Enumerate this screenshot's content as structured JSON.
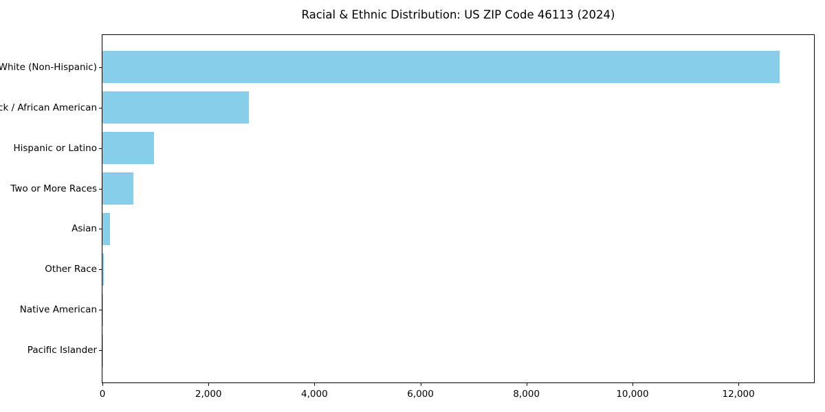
{
  "chart_data": {
    "type": "bar",
    "orientation": "horizontal",
    "title": "Racial & Ethnic Distribution: US ZIP Code 46113 (2024)",
    "categories": [
      "White (Non-Hispanic)",
      "Black / African American",
      "Hispanic or Latino",
      "Two or More Races",
      "Asian",
      "Other Race",
      "Native American",
      "Pacific Islander"
    ],
    "values": [
      12780,
      2760,
      970,
      580,
      140,
      20,
      8,
      2
    ],
    "xlabel": "",
    "ylabel": "",
    "xlim": [
      0,
      13425
    ],
    "xticks": [
      0,
      2000,
      4000,
      6000,
      8000,
      10000,
      12000
    ],
    "xtick_labels": [
      "0",
      "2,000",
      "4,000",
      "6,000",
      "8,000",
      "10,000",
      "12,000"
    ],
    "bar_color": "#87CEEB",
    "axis_color": "#000000",
    "background_color": "#FFFFFF",
    "grid": false,
    "legend": false
  }
}
